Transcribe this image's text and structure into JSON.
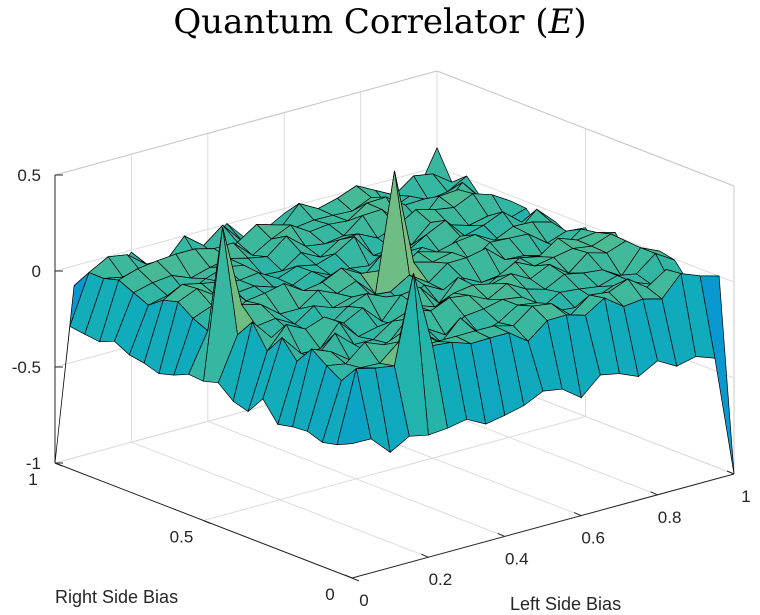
{
  "title": {
    "main": "Quantum Correlator (",
    "var": "E",
    "close": ")"
  },
  "chart_data": {
    "type": "surface",
    "title": "Quantum Correlator (E)",
    "xlabel": "Left Side Bias",
    "ylabel": "Right Side Bias",
    "zlabel": "",
    "xlim": [
      0,
      1
    ],
    "ylim": [
      0,
      1
    ],
    "zlim": [
      -1,
      0.5
    ],
    "xticks": [
      "0",
      "0.2",
      "0.4",
      "0.6",
      "0.8",
      "1"
    ],
    "yticks": [
      "0",
      "0.5",
      "1"
    ],
    "zticks": [
      "-1",
      "-0.5",
      "0",
      "0.5"
    ],
    "grid": true,
    "colormap": "parula",
    "grid_size": 21,
    "corner_values": {
      "x0_y0": -0.3,
      "x1_y0": -1,
      "x0_y1": -1,
      "x1_y1": 0.1
    },
    "edge_values": {
      "x_edge_0": -0.3,
      "y_edge_0": -0.35,
      "x_edge_1": -0.05,
      "y_edge_1": -0.05
    },
    "interior_mean": 0.0,
    "peaks": [
      {
        "x": 0.5,
        "y": 0.5,
        "z": 0.55
      },
      {
        "x": 0.05,
        "y": 0.5,
        "z": 0.5
      },
      {
        "x": 0.2,
        "y": 0.05,
        "z": 0.45
      }
    ]
  }
}
